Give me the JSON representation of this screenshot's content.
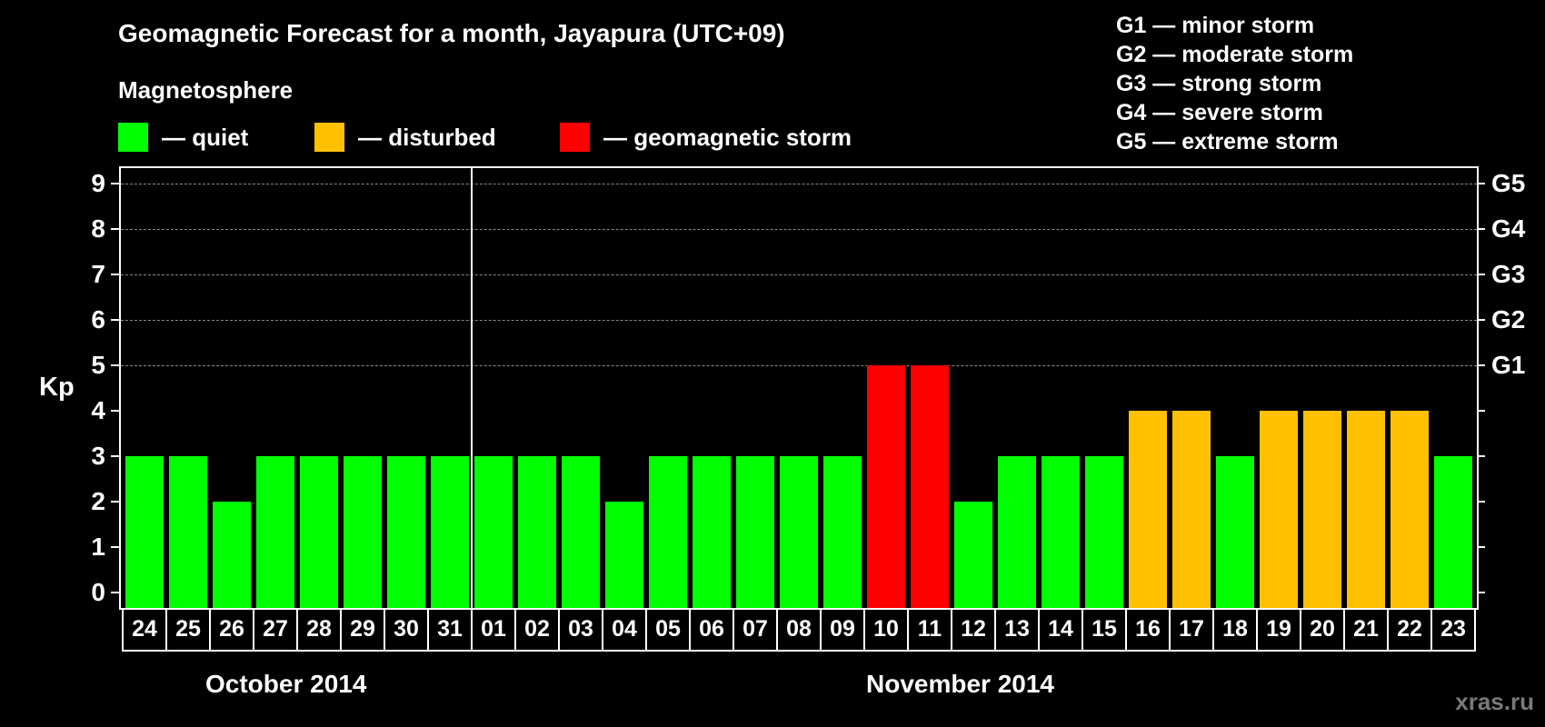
{
  "header": {
    "title": "Geomagnetic Forecast for a month, Jayapura (UTC+09)",
    "section_title": "Magnetosphere"
  },
  "legend": {
    "items": [
      {
        "label": "— quiet",
        "color": "#00FF00"
      },
      {
        "label": "— disturbed",
        "color": "#FFC000"
      },
      {
        "label": "— geomagnetic storm",
        "color": "#FF0000"
      }
    ]
  },
  "storm_scale": {
    "items": [
      {
        "label": "G1 — minor storm"
      },
      {
        "label": "G2 — moderate storm"
      },
      {
        "label": "G3 — strong storm"
      },
      {
        "label": "G4 — severe storm"
      },
      {
        "label": "G5 — extreme storm"
      }
    ]
  },
  "axis": {
    "ylabel": "Kp",
    "month_labels": [
      "October 2014",
      "November 2014"
    ],
    "credit": "xras.ru"
  },
  "chart_data": {
    "type": "bar",
    "title": "Geomagnetic Forecast for a month, Jayapura (UTC+09)",
    "xlabel": "",
    "ylabel": "Kp",
    "ylim": [
      0,
      9
    ],
    "yticks": [
      0,
      1,
      2,
      3,
      4,
      5,
      6,
      7,
      8,
      9
    ],
    "secondary_yticks": [
      {
        "value": 5,
        "label": "G1"
      },
      {
        "value": 6,
        "label": "G2"
      },
      {
        "value": 7,
        "label": "G3"
      },
      {
        "value": 8,
        "label": "G4"
      },
      {
        "value": 9,
        "label": "G5"
      }
    ],
    "grid": {
      "dashed_horizontal_at": [
        5,
        6,
        7,
        8,
        9
      ]
    },
    "legend_position": "top",
    "months": [
      {
        "label": "October 2014",
        "start_index": 0,
        "end_index": 7
      },
      {
        "label": "November 2014",
        "start_index": 8,
        "end_index": 30
      }
    ],
    "categories": [
      "24",
      "25",
      "26",
      "27",
      "28",
      "29",
      "30",
      "31",
      "01",
      "02",
      "03",
      "04",
      "05",
      "06",
      "07",
      "08",
      "09",
      "10",
      "11",
      "12",
      "13",
      "14",
      "15",
      "16",
      "17",
      "18",
      "19",
      "20",
      "21",
      "22",
      "23"
    ],
    "values": [
      3,
      3,
      2,
      3,
      3,
      3,
      3,
      3,
      3,
      3,
      3,
      2,
      3,
      3,
      3,
      3,
      3,
      5,
      5,
      2,
      3,
      3,
      3,
      4,
      4,
      3,
      4,
      4,
      4,
      4,
      3
    ],
    "status": [
      "quiet",
      "quiet",
      "quiet",
      "quiet",
      "quiet",
      "quiet",
      "quiet",
      "quiet",
      "quiet",
      "quiet",
      "quiet",
      "quiet",
      "quiet",
      "quiet",
      "quiet",
      "quiet",
      "quiet",
      "storm",
      "storm",
      "quiet",
      "quiet",
      "quiet",
      "quiet",
      "disturbed",
      "disturbed",
      "quiet",
      "disturbed",
      "disturbed",
      "disturbed",
      "disturbed",
      "quiet"
    ],
    "colors": {
      "quiet": "#00FF00",
      "disturbed": "#FFC000",
      "storm": "#FF0000"
    }
  }
}
